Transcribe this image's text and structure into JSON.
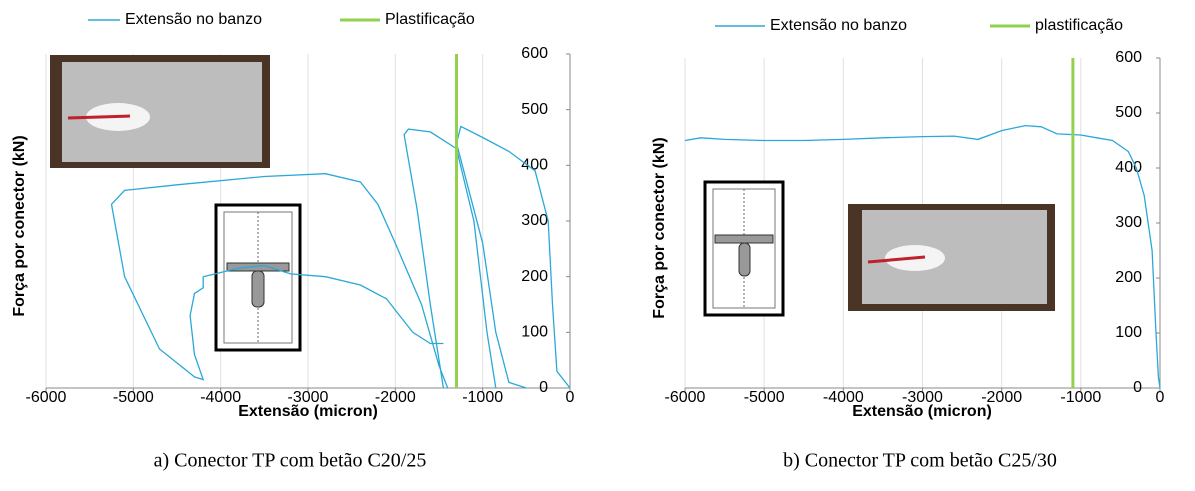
{
  "chart_data": [
    {
      "type": "line",
      "caption": "a) Conector TP com betão C20/25",
      "x_label": "Extensão (micron)",
      "y_label": "Força por conector (kN)",
      "xlim": [
        -6000,
        0
      ],
      "xticks": [
        -6000,
        -5000,
        -4000,
        -3000,
        -2000,
        -1000,
        0
      ],
      "ylim": [
        0,
        600
      ],
      "yticks": [
        0,
        100,
        200,
        300,
        400,
        500,
        600
      ],
      "grid": "x",
      "series": [
        {
          "name": "Extensão no banzo",
          "color": "#2aa8d8",
          "x": [
            0,
            -150,
            -200,
            -250,
            -400,
            -700,
            -1000,
            -1250,
            -1300,
            -1000,
            -850,
            -700,
            -500,
            null,
            -1450,
            -1600,
            -1750,
            -1900,
            -1850,
            -1600,
            -1300,
            -1100,
            -950,
            -850,
            null,
            -1400,
            -1500,
            -1700,
            -2000,
            -2200,
            -2400,
            -2800,
            -3500,
            -4500,
            -5100,
            -5250,
            -5100,
            -4700,
            -4300,
            -4200,
            -4300,
            -4350,
            -4300,
            -4200,
            -4200,
            -3800,
            -3500,
            -3200,
            -2800,
            -2400,
            -2100,
            -2000,
            -1800,
            -1600,
            -1450
          ],
          "values": [
            0,
            30,
            150,
            300,
            390,
            425,
            450,
            470,
            440,
            260,
            100,
            10,
            0,
            null,
            0,
            150,
            320,
            455,
            465,
            460,
            430,
            300,
            100,
            0,
            null,
            0,
            40,
            150,
            260,
            330,
            370,
            385,
            380,
            365,
            355,
            330,
            200,
            70,
            20,
            15,
            60,
            130,
            170,
            180,
            200,
            215,
            220,
            205,
            200,
            185,
            160,
            140,
            100,
            80,
            80
          ]
        },
        {
          "name": "Plastificação",
          "color": "#92d050",
          "x": [
            -1300,
            -1300
          ],
          "values": [
            0,
            600
          ]
        }
      ]
    },
    {
      "type": "line",
      "caption": "b) Conector TP com betão C25/30",
      "x_label": "Extensão (micron)",
      "y_label": "Força por conector (kN)",
      "xlim": [
        -6000,
        0
      ],
      "xticks": [
        -6000,
        -5000,
        -4000,
        -3000,
        -2000,
        -1000,
        0
      ],
      "ylim": [
        0,
        600
      ],
      "yticks": [
        0,
        100,
        200,
        300,
        400,
        500,
        600
      ],
      "grid": "x",
      "series": [
        {
          "name": "Extensão no banzo",
          "color": "#2aa8d8",
          "x": [
            0,
            -20,
            -50,
            -100,
            -200,
            -300,
            -400,
            -600,
            -800,
            -1000,
            -1300,
            -1500,
            -1700,
            -2000,
            -2300,
            -2600,
            -3000,
            -3500,
            -4000,
            -4500,
            -5000,
            -5500,
            -5800,
            -6000
          ],
          "values": [
            0,
            20,
            100,
            250,
            350,
            400,
            430,
            450,
            455,
            460,
            462,
            475,
            477,
            468,
            452,
            458,
            457,
            455,
            452,
            450,
            450,
            452,
            455,
            450
          ]
        },
        {
          "name": "plastificação",
          "color": "#92d050",
          "x": [
            -1100,
            -1100
          ],
          "values": [
            0,
            600
          ]
        }
      ]
    }
  ]
}
